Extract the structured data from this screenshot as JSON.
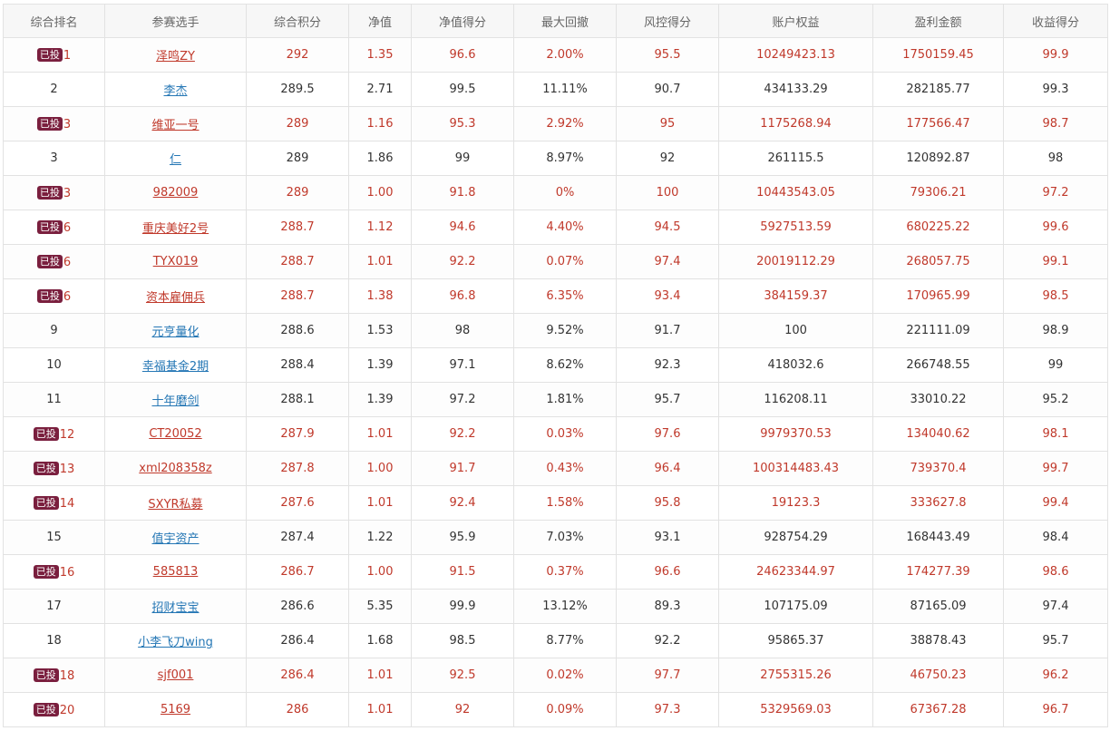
{
  "columns": [
    "综合排名",
    "参赛选手",
    "综合积分",
    "净值",
    "净值得分",
    "最大回撤",
    "风控得分",
    "账户权益",
    "盈利金额",
    "收益得分"
  ],
  "badge_label": "已投",
  "colors": {
    "invested_text": "#c0392b",
    "link_blue": "#2577b5",
    "badge_bg": "#7a1f3e"
  },
  "rows": [
    {
      "invested": true,
      "rank": "1",
      "name": "泽鸣ZY",
      "score": "292",
      "nav": "1.35",
      "nav_score": "96.6",
      "max_dd": "2.00%",
      "risk_score": "95.5",
      "equity": "10249423.13",
      "profit": "1750159.45",
      "return_score": "99.9"
    },
    {
      "invested": false,
      "rank": "2",
      "name": "李杰",
      "score": "289.5",
      "nav": "2.71",
      "nav_score": "99.5",
      "max_dd": "11.11%",
      "risk_score": "90.7",
      "equity": "434133.29",
      "profit": "282185.77",
      "return_score": "99.3"
    },
    {
      "invested": true,
      "rank": "3",
      "name": "维亚一号",
      "score": "289",
      "nav": "1.16",
      "nav_score": "95.3",
      "max_dd": "2.92%",
      "risk_score": "95",
      "equity": "1175268.94",
      "profit": "177566.47",
      "return_score": "98.7"
    },
    {
      "invested": false,
      "rank": "3",
      "name": "仁",
      "score": "289",
      "nav": "1.86",
      "nav_score": "99",
      "max_dd": "8.97%",
      "risk_score": "92",
      "equity": "261115.5",
      "profit": "120892.87",
      "return_score": "98"
    },
    {
      "invested": true,
      "rank": "3",
      "name": "982009",
      "score": "289",
      "nav": "1.00",
      "nav_score": "91.8",
      "max_dd": "0%",
      "risk_score": "100",
      "equity": "10443543.05",
      "profit": "79306.21",
      "return_score": "97.2"
    },
    {
      "invested": true,
      "rank": "6",
      "name": "重庆美好2号",
      "score": "288.7",
      "nav": "1.12",
      "nav_score": "94.6",
      "max_dd": "4.40%",
      "risk_score": "94.5",
      "equity": "5927513.59",
      "profit": "680225.22",
      "return_score": "99.6"
    },
    {
      "invested": true,
      "rank": "6",
      "name": "TYX019",
      "score": "288.7",
      "nav": "1.01",
      "nav_score": "92.2",
      "max_dd": "0.07%",
      "risk_score": "97.4",
      "equity": "20019112.29",
      "profit": "268057.75",
      "return_score": "99.1"
    },
    {
      "invested": true,
      "rank": "6",
      "name": "资本雇佣兵",
      "score": "288.7",
      "nav": "1.38",
      "nav_score": "96.8",
      "max_dd": "6.35%",
      "risk_score": "93.4",
      "equity": "384159.37",
      "profit": "170965.99",
      "return_score": "98.5"
    },
    {
      "invested": false,
      "rank": "9",
      "name": "元亨量化",
      "score": "288.6",
      "nav": "1.53",
      "nav_score": "98",
      "max_dd": "9.52%",
      "risk_score": "91.7",
      "equity": "100",
      "profit": "221111.09",
      "return_score": "98.9"
    },
    {
      "invested": false,
      "rank": "10",
      "name": "幸福基金2期",
      "score": "288.4",
      "nav": "1.39",
      "nav_score": "97.1",
      "max_dd": "8.62%",
      "risk_score": "92.3",
      "equity": "418032.6",
      "profit": "266748.55",
      "return_score": "99"
    },
    {
      "invested": false,
      "rank": "11",
      "name": "十年磨剑",
      "score": "288.1",
      "nav": "1.39",
      "nav_score": "97.2",
      "max_dd": "1.81%",
      "risk_score": "95.7",
      "equity": "116208.11",
      "profit": "33010.22",
      "return_score": "95.2"
    },
    {
      "invested": true,
      "rank": "12",
      "name": "CT20052",
      "score": "287.9",
      "nav": "1.01",
      "nav_score": "92.2",
      "max_dd": "0.03%",
      "risk_score": "97.6",
      "equity": "9979370.53",
      "profit": "134040.62",
      "return_score": "98.1"
    },
    {
      "invested": true,
      "rank": "13",
      "name": "xml208358z",
      "score": "287.8",
      "nav": "1.00",
      "nav_score": "91.7",
      "max_dd": "0.43%",
      "risk_score": "96.4",
      "equity": "100314483.43",
      "profit": "739370.4",
      "return_score": "99.7"
    },
    {
      "invested": true,
      "rank": "14",
      "name": "SXYR私募",
      "score": "287.6",
      "nav": "1.01",
      "nav_score": "92.4",
      "max_dd": "1.58%",
      "risk_score": "95.8",
      "equity": "19123.3",
      "profit": "333627.8",
      "return_score": "99.4"
    },
    {
      "invested": false,
      "rank": "15",
      "name": "值宇资产",
      "score": "287.4",
      "nav": "1.22",
      "nav_score": "95.9",
      "max_dd": "7.03%",
      "risk_score": "93.1",
      "equity": "928754.29",
      "profit": "168443.49",
      "return_score": "98.4"
    },
    {
      "invested": true,
      "rank": "16",
      "name": "585813",
      "score": "286.7",
      "nav": "1.00",
      "nav_score": "91.5",
      "max_dd": "0.37%",
      "risk_score": "96.6",
      "equity": "24623344.97",
      "profit": "174277.39",
      "return_score": "98.6"
    },
    {
      "invested": false,
      "rank": "17",
      "name": "招财宝宝",
      "score": "286.6",
      "nav": "5.35",
      "nav_score": "99.9",
      "max_dd": "13.12%",
      "risk_score": "89.3",
      "equity": "107175.09",
      "profit": "87165.09",
      "return_score": "97.4"
    },
    {
      "invested": false,
      "rank": "18",
      "name": "小李飞刀wing",
      "score": "286.4",
      "nav": "1.68",
      "nav_score": "98.5",
      "max_dd": "8.77%",
      "risk_score": "92.2",
      "equity": "95865.37",
      "profit": "38878.43",
      "return_score": "95.7"
    },
    {
      "invested": true,
      "rank": "18",
      "name": "sjf001",
      "score": "286.4",
      "nav": "1.01",
      "nav_score": "92.5",
      "max_dd": "0.02%",
      "risk_score": "97.7",
      "equity": "2755315.26",
      "profit": "46750.23",
      "return_score": "96.2"
    },
    {
      "invested": true,
      "rank": "20",
      "name": "5169",
      "score": "286",
      "nav": "1.01",
      "nav_score": "92",
      "max_dd": "0.09%",
      "risk_score": "97.3",
      "equity": "5329569.03",
      "profit": "67367.28",
      "return_score": "96.7"
    }
  ]
}
